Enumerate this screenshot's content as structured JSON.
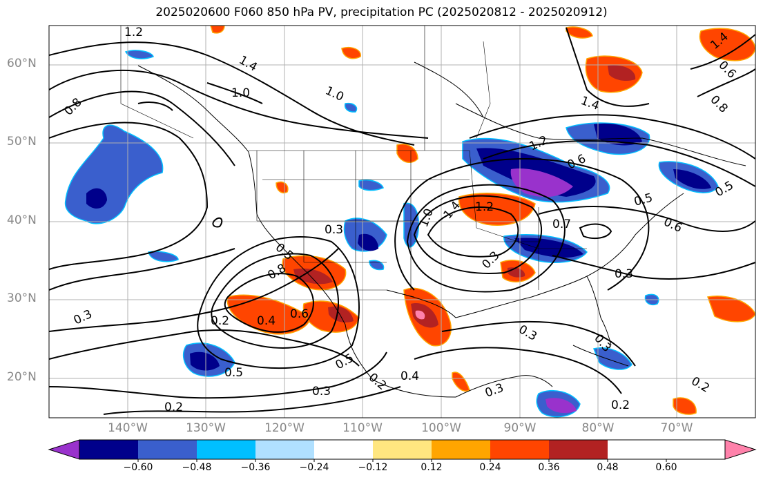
{
  "title": "2025020600 F060 850 hPa PV, precipitation PC (2025020812 - 2025020912)",
  "axes": {
    "lat_labels": [
      "60°N",
      "50°N",
      "40°N",
      "30°N",
      "20°N"
    ],
    "lat_values": [
      60,
      50,
      40,
      30,
      20
    ],
    "lon_labels": [
      "140°W",
      "130°W",
      "120°W",
      "110°W",
      "100°W",
      "90°W",
      "80°W",
      "70°W"
    ],
    "lon_values": [
      -140,
      -130,
      -120,
      -110,
      -100,
      -90,
      -80,
      -70
    ],
    "lat_range": [
      15,
      65
    ],
    "lon_range": [
      -150,
      -60
    ]
  },
  "colorbar": {
    "ticks": [
      "−0.60",
      "−0.48",
      "−0.36",
      "−0.24",
      "−0.12",
      "0.12",
      "0.24",
      "0.36",
      "0.48",
      "0.60"
    ],
    "colors": [
      "#9932cc",
      "#00008b",
      "#3a5fcd",
      "#00bfff",
      "#b0e0ff",
      "#ffffff",
      "#ffe680",
      "#ffa500",
      "#ff4500",
      "#b22222",
      "#ff82ab"
    ]
  },
  "contour_labels": [
    "1.2",
    "1.4",
    "1.0",
    "1.0",
    "0.8",
    "0.3",
    "0.5",
    "0.8",
    "0.6",
    "0.4",
    "0.2",
    "0.3",
    "0.5",
    "0.2",
    "0.5",
    "0.3",
    "0.2",
    "0.4",
    "1.0",
    "1.4",
    "1.2",
    "0.7",
    "0.3",
    "0.3",
    "0.6",
    "1.4",
    "1.2",
    "0.6",
    "0.5",
    "0.5",
    "0.3",
    "0.3",
    "0.3",
    "0.2",
    "0.2",
    "0.8",
    "0.6",
    "1.4"
  ]
}
